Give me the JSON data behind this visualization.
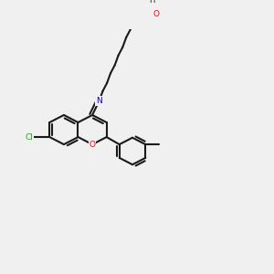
{
  "bg_color": "#f0f0f0",
  "bond_color": "#1a1a1a",
  "N_color": "#0000ff",
  "O_color": "#ff0000",
  "Cl_color": "#00bb00",
  "line_width": 1.5,
  "dbo": 0.01,
  "font_size": 6.5
}
